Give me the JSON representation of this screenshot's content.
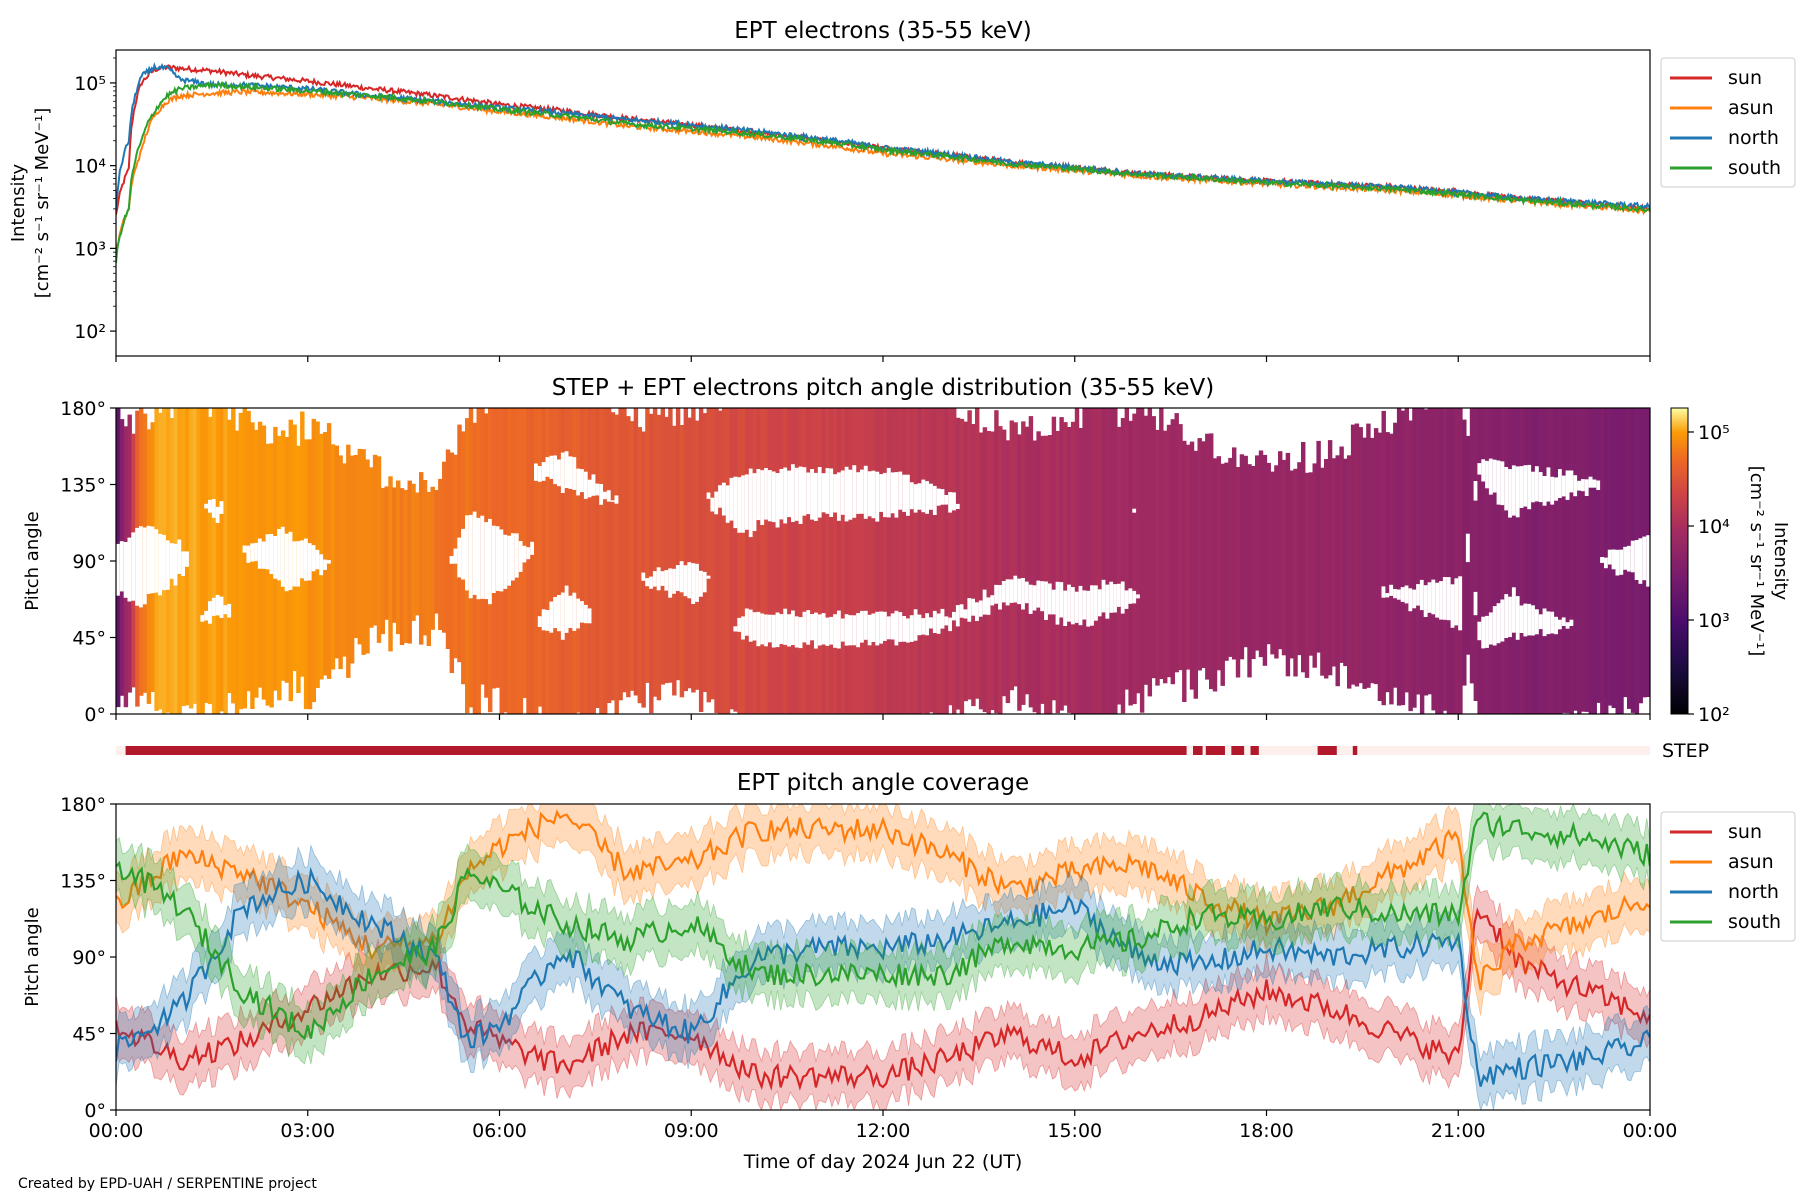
{
  "footer": {
    "credit": "Created by EPD-UAH / SERPENTINE project"
  },
  "colors": {
    "sun": "#d62728",
    "asun": "#ff7f0e",
    "north": "#1f77b4",
    "south": "#2ca02c",
    "step": "#b2182b",
    "step_bg": "#fdf0ec"
  },
  "chart_data": [
    {
      "type": "line",
      "title": "EPT electrons (35-55 keV)",
      "xlabel": "",
      "ylabel": [
        "Intensity",
        "[cm⁻² s⁻¹ sr⁻¹ MeV⁻¹]"
      ],
      "yscale": "log",
      "ylim": [
        50,
        250000
      ],
      "yticks": [
        "10²",
        "10³",
        "10⁴",
        "10⁵"
      ],
      "xlim_hours": [
        0,
        24
      ],
      "legend": {
        "placement": "outside-right",
        "entries": [
          "sun",
          "asun",
          "north",
          "south"
        ]
      },
      "series": [
        {
          "name": "sun",
          "x_hours": [
            0,
            0.2,
            0.4,
            0.6,
            0.8,
            1.0,
            1.5,
            2,
            3,
            4,
            6,
            8,
            10,
            12,
            14,
            16,
            18,
            20,
            22,
            24
          ],
          "values": [
            2500,
            9000,
            100000,
            145000,
            155000,
            150000,
            140000,
            125000,
            105000,
            85000,
            55000,
            37000,
            25000,
            16000,
            11000,
            8000,
            6500,
            5500,
            4000,
            3000
          ]
        },
        {
          "name": "asun",
          "x_hours": [
            0,
            0.2,
            0.4,
            0.6,
            0.8,
            1.0,
            1.5,
            2,
            3,
            4,
            6,
            8,
            10,
            12,
            14,
            16,
            18,
            20,
            22,
            24
          ],
          "values": [
            800,
            3000,
            15000,
            40000,
            60000,
            70000,
            75000,
            78000,
            73000,
            65000,
            45000,
            30000,
            22000,
            14000,
            10000,
            7500,
            6000,
            5000,
            3700,
            2800
          ]
        },
        {
          "name": "north",
          "x_hours": [
            0,
            0.2,
            0.4,
            0.6,
            0.8,
            1.0,
            1.5,
            2,
            3,
            4,
            6,
            8,
            10,
            12,
            14,
            16,
            18,
            20,
            22,
            24
          ],
          "values": [
            3000,
            20000,
            120000,
            155000,
            150000,
            110000,
            95000,
            95000,
            85000,
            70000,
            50000,
            36000,
            26000,
            16500,
            11000,
            8000,
            6500,
            5500,
            4000,
            3200
          ]
        },
        {
          "name": "south",
          "x_hours": [
            0,
            0.2,
            0.4,
            0.6,
            0.8,
            1.0,
            1.5,
            2,
            3,
            4,
            6,
            8,
            10,
            12,
            14,
            16,
            18,
            20,
            22,
            24
          ],
          "values": [
            700,
            3000,
            20000,
            45000,
            70000,
            85000,
            95000,
            90000,
            80000,
            70000,
            48000,
            32000,
            24000,
            15500,
            10500,
            7800,
            6200,
            5200,
            3800,
            2900
          ]
        }
      ]
    },
    {
      "type": "heatmap",
      "title": "STEP + EPT electrons pitch angle distribution (35-55 keV)",
      "ylabel": "Pitch angle",
      "ylim": [
        0,
        180
      ],
      "yticks": [
        "0°",
        "45°",
        "90°",
        "135°",
        "180°"
      ],
      "xlim_hours": [
        0,
        24
      ],
      "colorbar": {
        "label": [
          "Intensity",
          "[cm⁻² s⁻¹ sr⁻¹ MeV⁻¹]"
        ],
        "scale": "log",
        "range": [
          100,
          180000
        ],
        "ticks": [
          "10²",
          "10³",
          "10⁴",
          "10⁵"
        ],
        "colormap": "inferno"
      }
    },
    {
      "type": "bar",
      "label": "STEP",
      "xlim_hours": [
        0,
        24
      ],
      "on_intervals_hours": [
        [
          0.15,
          16.75
        ],
        [
          16.85,
          17.0
        ],
        [
          17.05,
          17.35
        ],
        [
          17.45,
          17.65
        ],
        [
          17.75,
          17.88
        ],
        [
          18.8,
          19.1
        ],
        [
          19.35,
          19.42
        ]
      ]
    },
    {
      "type": "line",
      "title": "EPT pitch angle coverage",
      "xlabel": "Time of day 2024 Jun 22 (UT)",
      "ylabel": "Pitch angle",
      "ylim": [
        0,
        180
      ],
      "yticks": [
        "0°",
        "45°",
        "90°",
        "135°",
        "180°"
      ],
      "xlim_hours": [
        0,
        24
      ],
      "xticks": [
        "00:00",
        "03:00",
        "06:00",
        "09:00",
        "12:00",
        "15:00",
        "18:00",
        "21:00",
        "00:00"
      ],
      "legend": {
        "placement": "outside-right",
        "entries": [
          "sun",
          "asun",
          "north",
          "south"
        ]
      },
      "series": [
        {
          "name": "sun",
          "x_hours": [
            0,
            1,
            2,
            3,
            4,
            5,
            5.5,
            6,
            7,
            8,
            9,
            10,
            11,
            12,
            13,
            14,
            15,
            16,
            17,
            18,
            19,
            20,
            21,
            21.3,
            22,
            23,
            24
          ],
          "values": [
            50,
            30,
            40,
            60,
            80,
            85,
            50,
            40,
            25,
            45,
            45,
            20,
            20,
            20,
            30,
            45,
            30,
            45,
            55,
            70,
            60,
            45,
            30,
            120,
            85,
            70,
            55
          ]
        },
        {
          "name": "asun",
          "x_hours": [
            0,
            1,
            2,
            3,
            4,
            5,
            5.5,
            6,
            7,
            8,
            9,
            10,
            11,
            12,
            13,
            14,
            15,
            16,
            17,
            18,
            19,
            20,
            21,
            21.3,
            22,
            23,
            24
          ],
          "values": [
            120,
            150,
            140,
            120,
            95,
            100,
            140,
            155,
            175,
            140,
            145,
            165,
            165,
            165,
            150,
            130,
            140,
            145,
            125,
            110,
            120,
            140,
            160,
            75,
            100,
            110,
            125
          ]
        },
        {
          "name": "north",
          "x_hours": [
            0,
            1,
            2,
            3,
            4,
            5,
            5.5,
            6,
            7,
            8,
            9,
            10,
            11,
            12,
            13,
            14,
            15,
            16,
            17,
            18,
            19,
            20,
            21,
            21.3,
            22,
            23,
            24
          ],
          "values": [
            35,
            60,
            120,
            135,
            110,
            90,
            40,
            50,
            95,
            60,
            45,
            90,
            95,
            95,
            100,
            110,
            120,
            90,
            85,
            95,
            90,
            95,
            100,
            20,
            25,
            30,
            40
          ]
        },
        {
          "name": "south",
          "x_hours": [
            0,
            1,
            2,
            3,
            4,
            5,
            5.5,
            6,
            7,
            8,
            9,
            10,
            11,
            12,
            13,
            14,
            15,
            16,
            17,
            18,
            19,
            20,
            21,
            21.3,
            22,
            23,
            24
          ],
          "values": [
            145,
            120,
            70,
            45,
            80,
            95,
            140,
            130,
            110,
            100,
            110,
            80,
            80,
            80,
            80,
            100,
            95,
            100,
            115,
            110,
            120,
            115,
            115,
            170,
            165,
            160,
            150
          ]
        }
      ]
    }
  ]
}
